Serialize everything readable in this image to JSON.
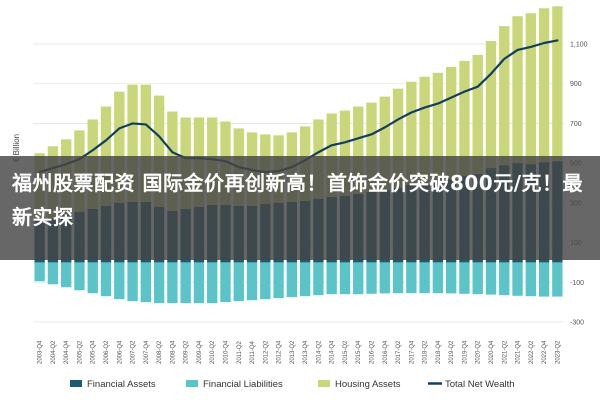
{
  "headline": "福州股票配资 国际金价再创新高！首饰金价突破800元/克！最新实探",
  "chart_data": {
    "type": "bar",
    "ylabel": "€ Billion",
    "ylim": [
      -300,
      1100
    ],
    "yticks": [
      -300,
      -100,
      100,
      300,
      500,
      700,
      900,
      1100
    ],
    "ytick_labels": [
      "-300",
      "-100",
      "100",
      "300",
      "500",
      "700",
      "900",
      "1,100"
    ],
    "categories": [
      "2003-Q4",
      "2004-Q2",
      "2004-Q4",
      "2005-Q2",
      "2005-Q4",
      "2006-Q2",
      "2006-Q4",
      "2007-Q2",
      "2007-Q4",
      "2008-Q2",
      "2008-Q4",
      "2009-Q2",
      "2009-Q4",
      "2010-Q2",
      "2010-Q4",
      "2011-Q2",
      "2011-Q4",
      "2012-Q2",
      "2012-Q4",
      "2013-Q2",
      "2013-Q4",
      "2014-Q2",
      "2014-Q4",
      "2015-Q2",
      "2015-Q4",
      "2016-Q2",
      "2016-Q4",
      "2017-Q2",
      "2017-Q4",
      "2018-Q2",
      "2018-Q4",
      "2019-Q2",
      "2019-Q4",
      "2020-Q2",
      "2020-Q4",
      "2021-Q2",
      "2021-Q4",
      "2022-Q2",
      "2022-Q4",
      "2023-Q2"
    ],
    "series": [
      {
        "name": "Financial Assets",
        "color": "#1b5c6e",
        "values": [
          210,
          225,
          240,
          255,
          270,
          285,
          300,
          305,
          305,
          280,
          260,
          270,
          280,
          290,
          290,
          285,
          285,
          295,
          300,
          305,
          310,
          320,
          330,
          335,
          345,
          355,
          365,
          375,
          390,
          395,
          400,
          420,
          435,
          445,
          475,
          490,
          500,
          495,
          505,
          510
        ]
      },
      {
        "name": "Financial Liabilities",
        "color": "#5bc4c8",
        "values": [
          -95,
          -110,
          -125,
          -140,
          -155,
          -170,
          -185,
          -195,
          -200,
          -205,
          -205,
          -205,
          -205,
          -205,
          -200,
          -195,
          -190,
          -185,
          -180,
          -175,
          -170,
          -165,
          -160,
          -160,
          -160,
          -158,
          -156,
          -155,
          -155,
          -155,
          -155,
          -156,
          -158,
          -160,
          -162,
          -165,
          -168,
          -170,
          -172,
          -172
        ]
      },
      {
        "name": "Housing Assets",
        "color": "#c9d77a",
        "values": [
          340,
          360,
          380,
          410,
          450,
          500,
          560,
          590,
          590,
          560,
          500,
          460,
          450,
          440,
          420,
          390,
          370,
          350,
          340,
          350,
          375,
          400,
          420,
          430,
          440,
          450,
          470,
          500,
          520,
          540,
          555,
          565,
          580,
          600,
          640,
          700,
          740,
          760,
          775,
          780
        ]
      },
      {
        "name": "Total Net Wealth",
        "color": "#133f5e",
        "type": "line",
        "values": [
          455,
          475,
          495,
          520,
          565,
          615,
          675,
          700,
          695,
          635,
          555,
          525,
          525,
          520,
          510,
          480,
          465,
          455,
          460,
          480,
          515,
          555,
          590,
          605,
          625,
          645,
          680,
          720,
          755,
          780,
          800,
          830,
          860,
          885,
          950,
          1025,
          1070,
          1085,
          1105,
          1118
        ]
      }
    ],
    "legend": [
      "Financial Assets",
      "Financial Liabilities",
      "Housing Assets",
      "Total Net Wealth"
    ],
    "legend_position": "bottom",
    "grid": true
  }
}
